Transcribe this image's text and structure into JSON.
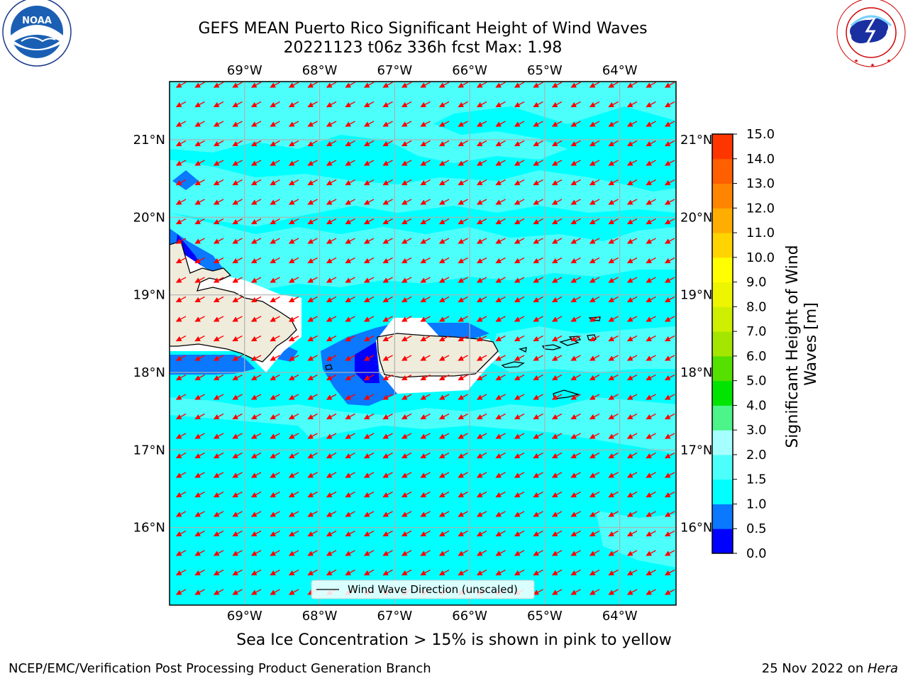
{
  "title": {
    "line1": "GEFS MEAN Puerto Rico Significant Height of Wind Waves",
    "line2": "20221123 t06z 336h fcst   Max: 1.98"
  },
  "logos": {
    "left_text": "NOAA",
    "left_ring_text": "NATIONAL OCEANIC AND ATMOSPHERIC ADMINISTRATION · U.S. DEPARTMENT OF COMMERCE",
    "right_ring_text": "NATIONAL WEATHER SERVICE"
  },
  "map": {
    "lon_labels": [
      "69°W",
      "68°W",
      "67°W",
      "66°W",
      "65°W",
      "64°W"
    ],
    "lat_labels": [
      "21°N",
      "20°N",
      "19°N",
      "18°N",
      "17°N",
      "16°N"
    ],
    "lon_values": [
      -69,
      -68,
      -67,
      -66,
      -65,
      -64
    ],
    "lat_values": [
      21,
      20,
      19,
      18,
      17,
      16
    ],
    "lon_range": [
      -70.0,
      -63.25
    ],
    "lat_range": [
      15.0,
      21.75
    ],
    "arrow_color": "#ff0000",
    "land_color": "#efecdc",
    "legend_label": "Wind Wave Direction (unscaled)",
    "colors": {
      "0.0-0.5": "#0000ff",
      "0.5-1.0": "#0a78ff",
      "1.0-1.5": "#00ffff",
      "1.5-2.0": "#4cfffb",
      "2.0-3.0": "#a5fffe"
    }
  },
  "colorbar": {
    "ticks": [
      "0.0",
      "0.5",
      "1.0",
      "1.5",
      "2.0",
      "3.0",
      "4.0",
      "5.0",
      "6.0",
      "7.0",
      "8.0",
      "9.0",
      "10.0",
      "11.0",
      "12.0",
      "13.0",
      "14.0",
      "15.0"
    ],
    "colors": [
      "#0000ff",
      "#0a78ff",
      "#00ffff",
      "#4cfffb",
      "#a5fffe",
      "#4cf48a",
      "#00e400",
      "#55e000",
      "#a5e600",
      "#cef000",
      "#eef500",
      "#ffff00",
      "#ffd400",
      "#ffad00",
      "#ff8500",
      "#ff5f00",
      "#ff3500"
    ],
    "label": "Significant Height of Wind Waves [m]"
  },
  "bottom_note": "Sea Ice Concentration > 15% is shown in pink to yellow",
  "footer": {
    "left": "NCEP/EMC/Verification Post Processing Product Generation Branch",
    "right_date": "25 Nov 2022 on ",
    "right_host": "Hera"
  }
}
